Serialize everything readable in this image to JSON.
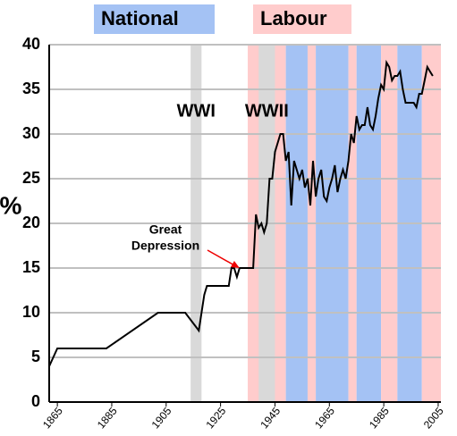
{
  "chart_data": {
    "type": "line",
    "y_label": "%",
    "xlim": [
      1862,
      2006
    ],
    "ylim": [
      0,
      40
    ],
    "yticks": [
      0,
      5,
      10,
      15,
      20,
      25,
      30,
      35,
      40
    ],
    "xticks": [
      1865,
      1885,
      1905,
      1925,
      1945,
      1965,
      1985,
      2005
    ],
    "grid": true,
    "legend": [
      {
        "name": "National",
        "color": "#a4c2f4"
      },
      {
        "name": "Labour",
        "color": "#ffcccc"
      }
    ],
    "bands": [
      {
        "party": "Labour",
        "start": 1935,
        "end": 1949
      },
      {
        "party": "National",
        "start": 1949,
        "end": 1957
      },
      {
        "party": "Labour",
        "start": 1957,
        "end": 1960
      },
      {
        "party": "National",
        "start": 1960,
        "end": 1972
      },
      {
        "party": "Labour",
        "start": 1972,
        "end": 1975
      },
      {
        "party": "National",
        "start": 1975,
        "end": 1984
      },
      {
        "party": "Labour",
        "start": 1984,
        "end": 1990
      },
      {
        "party": "National",
        "start": 1990,
        "end": 1999
      },
      {
        "party": "Labour",
        "start": 1999,
        "end": 2006
      }
    ],
    "wars": [
      {
        "label": "WWI",
        "start": 1914,
        "end": 1918
      },
      {
        "label": "WWII",
        "start": 1939,
        "end": 1945
      }
    ],
    "war_color": "#d9d9d9",
    "annotation": {
      "lines": [
        "Great",
        "Depression"
      ],
      "x": 1932,
      "y": 15
    },
    "series": [
      {
        "color": "#000000",
        "x": [
          1862,
          1865,
          1883,
          1902,
          1912,
          1917,
          1919,
          1920,
          1928,
          1929,
          1930,
          1931,
          1932,
          1937,
          1938,
          1939,
          1940,
          1941,
          1942,
          1943,
          1944,
          1945,
          1946,
          1947,
          1948,
          1949,
          1950,
          1951,
          1952,
          1953,
          1954,
          1955,
          1956,
          1957,
          1958,
          1959,
          1960,
          1961,
          1962,
          1963,
          1964,
          1965,
          1966,
          1967,
          1968,
          1969,
          1970,
          1971,
          1972,
          1973,
          1974,
          1975,
          1976,
          1977,
          1978,
          1979,
          1980,
          1981,
          1982,
          1983,
          1984,
          1985,
          1986,
          1987,
          1988,
          1989,
          1990,
          1991,
          1992,
          1993,
          1994,
          1995,
          1996,
          1997,
          1998,
          1999,
          2000,
          2001,
          2002,
          2003
        ],
        "values": [
          4,
          6,
          6,
          10,
          10,
          8,
          12,
          13,
          13,
          15,
          15,
          14,
          15,
          15,
          21,
          19.5,
          20,
          19,
          20,
          25,
          25,
          28,
          29,
          30,
          30,
          27,
          28,
          22,
          27,
          26,
          25,
          26,
          24,
          25,
          22,
          27,
          23,
          25,
          26,
          23,
          22.5,
          24,
          25,
          26.5,
          23.5,
          25,
          26,
          25,
          27,
          30,
          29,
          32,
          30.5,
          31,
          31,
          33,
          31,
          30.5,
          32,
          34,
          35.5,
          35,
          38,
          37.5,
          36,
          36.5,
          36.5,
          37,
          35,
          33.5,
          33.5,
          33.5,
          33.5,
          33,
          34.5,
          34.5,
          36,
          37.5,
          37,
          36.5
        ]
      }
    ]
  }
}
